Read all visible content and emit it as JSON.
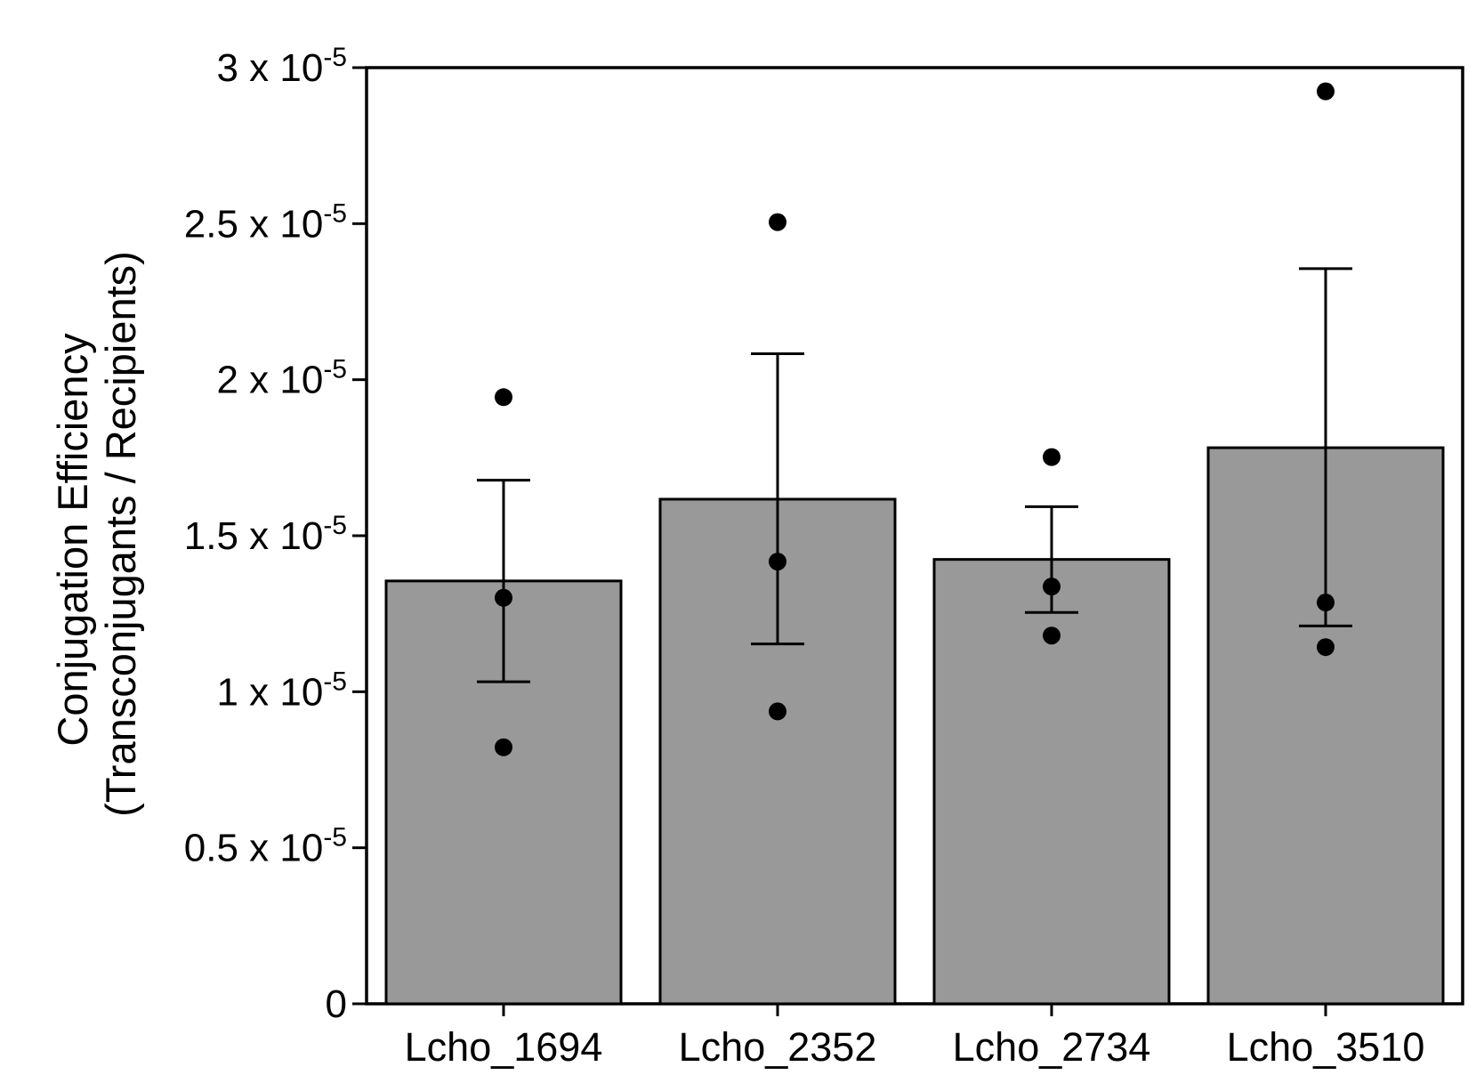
{
  "chart_data": {
    "type": "bar",
    "title": "",
    "xlabel": "",
    "ylabel_lines": [
      "Conjugation Efficiency",
      "(Transconjugants / Recipients)"
    ],
    "categories": [
      "Lcho_1694",
      "Lcho_2352",
      "Lcho_2734",
      "Lcho_3510"
    ],
    "values": [
      1.355e-05,
      1.617e-05,
      1.424e-05,
      1.782e-05
    ],
    "error_upper": [
      1.678e-05,
      2.083e-05,
      1.593e-05,
      2.356e-05
    ],
    "error_lower": [
      1.032e-05,
      1.153e-05,
      1.254e-05,
      1.211e-05
    ],
    "points": [
      [
        1.944e-05,
        1.301e-05,
        8.22e-06
      ],
      [
        2.505e-05,
        1.417e-05,
        9.37e-06
      ],
      [
        1.752e-05,
        1.337e-05,
        1.18e-05
      ],
      [
        2.924e-05,
        1.286e-05,
        1.143e-05
      ]
    ],
    "ylim": [
      0,
      3e-05
    ],
    "yticks": [
      {
        "value": 0,
        "label": "0",
        "sup": ""
      },
      {
        "value": 5e-06,
        "label": "0.5 x 10",
        "sup": "-5"
      },
      {
        "value": 1e-05,
        "label": "1 x 10",
        "sup": "-5"
      },
      {
        "value": 1.5e-05,
        "label": "1.5 x 10",
        "sup": "-5"
      },
      {
        "value": 2e-05,
        "label": "2 x 10",
        "sup": "-5"
      },
      {
        "value": 2.5e-05,
        "label": "2.5 x 10",
        "sup": "-5"
      },
      {
        "value": 3e-05,
        "label": "3 x 10",
        "sup": "-5"
      }
    ],
    "grid": false,
    "legend": "none",
    "colors": {
      "bar_fill": "#999999",
      "bar_stroke": "#000000",
      "point": "#000000",
      "axis": "#000000"
    }
  }
}
